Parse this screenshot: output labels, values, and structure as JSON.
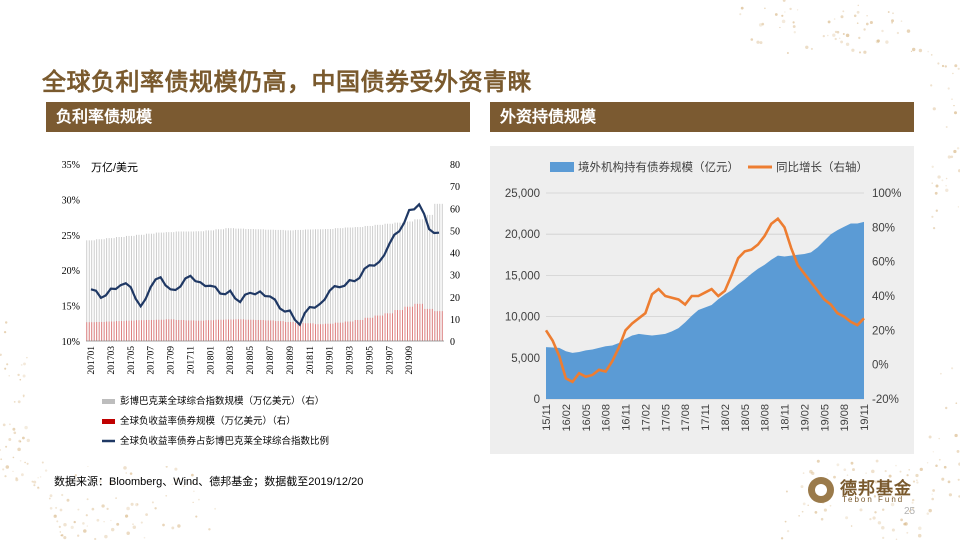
{
  "title": "全球负利率债规模仍高，中国债券受外资青睐",
  "section_left": "负利率债规模",
  "section_right": "外资持债规模",
  "source": "数据来源：Bloomberg、Wind、德邦基金；数据截至2019/12/20",
  "logo": {
    "cn": "德邦基金",
    "en": "Tebon Fund"
  },
  "page_number": "25",
  "colors": {
    "brand": "#7B5A31",
    "bar_gray": "#BDBDBD",
    "bar_red": "#C00000",
    "line_navy": "#1F3864",
    "area_blue": "#5B9BD5",
    "line_orange": "#ED7D31"
  },
  "chart_data": [
    {
      "type": "bar",
      "unit_label": "万亿/美元",
      "y_left": {
        "ticks": [
          "10%",
          "15%",
          "20%",
          "25%",
          "30%",
          "35%"
        ],
        "range": [
          10,
          35
        ]
      },
      "y_right": {
        "ticks": [
          "0",
          "10",
          "20",
          "30",
          "40",
          "50",
          "60",
          "70",
          "80"
        ],
        "range": [
          0,
          80
        ]
      },
      "x_tick_labels": [
        "201701",
        "201703",
        "201705",
        "201707",
        "201709",
        "201711",
        "201801",
        "201803",
        "201805",
        "201807",
        "201809",
        "201811",
        "201901",
        "201903",
        "201905",
        "201907",
        "201909"
      ],
      "series": [
        {
          "name": "彭博巴克莱全球综合指数规模（万亿美元）（右）",
          "kind": "bar",
          "values_by_month": [
            45.5,
            46,
            46.5,
            47,
            47.5,
            48,
            48.5,
            49,
            49.2,
            49.5,
            49.5,
            49.6,
            50,
            50.5,
            51,
            50.8,
            50.6,
            50.5,
            50.3,
            50.2,
            50,
            50.2,
            50.4,
            50.5,
            50.6,
            51,
            51.3,
            51.5,
            52,
            52.5,
            53,
            53.5,
            54,
            55,
            57,
            62
          ]
        },
        {
          "name": "全球负收益率债券规模（万亿美元）（右）",
          "kind": "bar",
          "values_by_month": [
            8.5,
            8.6,
            8.8,
            9,
            9.2,
            9.4,
            9.5,
            9.6,
            9.8,
            9.5,
            9.3,
            9.2,
            9.4,
            9.6,
            9.7,
            9.8,
            9.6,
            9.5,
            9.3,
            9.0,
            8.6,
            8.2,
            8.0,
            7.6,
            7.8,
            8.3,
            8.8,
            9.5,
            10.5,
            11.5,
            12.5,
            14.0,
            15.5,
            16.8,
            14.5,
            13.5
          ]
        },
        {
          "name": "全球负收益率债券占彭博巴克莱全球综合指数比例",
          "kind": "line",
          "values_by_month": [
            17.0,
            16.4,
            17.1,
            18.2,
            17.3,
            15.2,
            17.3,
            19.3,
            17.0,
            18.0,
            18.9,
            18.6,
            17.5,
            17.0,
            16.8,
            15.8,
            16.5,
            17.3,
            16.0,
            14.9,
            14.0,
            12.6,
            14.5,
            15.5,
            16.8,
            17.9,
            18.3,
            19.2,
            20.4,
            21.5,
            23.4,
            25.8,
            28.2,
            29.6,
            25.5,
            25.6
          ]
        }
      ]
    },
    {
      "type": "area",
      "y_left": {
        "ticks": [
          "0",
          "5,000",
          "10,000",
          "15,000",
          "20,000",
          "25,000"
        ],
        "range": [
          0,
          25000
        ]
      },
      "y_right": {
        "ticks": [
          "-20%",
          "0%",
          "20%",
          "40%",
          "60%",
          "80%",
          "100%"
        ],
        "range": [
          -20,
          100
        ]
      },
      "x_tick_labels": [
        "15/11",
        "16/02",
        "16/05",
        "16/08",
        "16/11",
        "17/02",
        "17/05",
        "17/08",
        "17/11",
        "18/02",
        "18/05",
        "18/08",
        "18/11",
        "19/02",
        "19/05",
        "19/08",
        "19/11"
      ],
      "series": [
        {
          "name": "境外机构持有债券规模（亿元）",
          "kind": "area",
          "values_by_month": [
            6300,
            6250,
            6200,
            5800,
            5600,
            5700,
            5900,
            6000,
            6200,
            6400,
            6500,
            6800,
            7300,
            7700,
            7900,
            7800,
            7700,
            7800,
            7900,
            8200,
            8600,
            9300,
            10100,
            10800,
            11100,
            11400,
            12100,
            12700,
            13200,
            13900,
            14500,
            15200,
            15800,
            16300,
            16900,
            17400,
            17300,
            17400,
            17500,
            17600,
            17800,
            18400,
            19200,
            20000,
            20500,
            20900,
            21300,
            21300,
            21500
          ]
        },
        {
          "name": "同比增长（右轴）",
          "kind": "line",
          "values_by_month": [
            20,
            14,
            5,
            -8,
            -10,
            -5,
            -7,
            -6,
            -3,
            -4,
            2,
            10,
            20,
            24,
            27,
            30,
            41,
            44,
            40,
            39,
            38,
            35,
            40,
            40,
            42,
            44,
            40,
            43,
            52,
            62,
            66,
            67,
            70,
            75,
            82,
            85,
            80,
            68,
            58,
            53,
            48,
            43,
            38,
            35,
            30,
            28,
            25,
            23,
            27
          ]
        }
      ]
    }
  ]
}
